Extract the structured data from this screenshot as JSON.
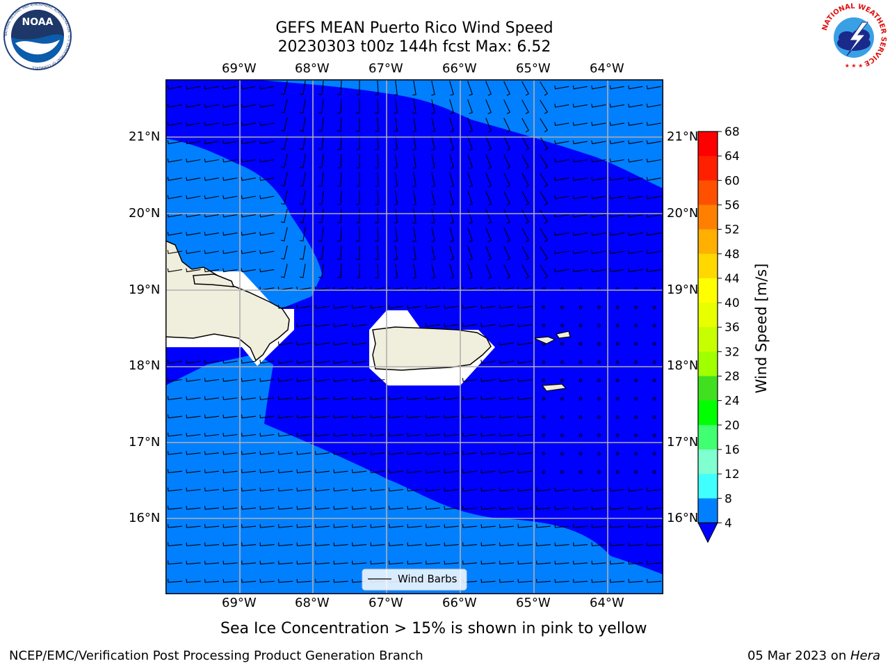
{
  "header": {
    "title_line1": "GEFS MEAN Puerto Rico Wind Speed",
    "title_line2": "20230303 t00z 144h fcst   Max: 6.52"
  },
  "logos": {
    "left_text": "NOAA",
    "left_ring_text": "NATIONAL OCEANIC AND ATMOSPHERIC ADMINISTRATION · U.S. DEPARTMENT OF COMMERCE",
    "right_ring_text": "NATIONAL WEATHER SERVICE"
  },
  "map": {
    "lon_labels": [
      "69°W",
      "68°W",
      "67°W",
      "66°W",
      "65°W",
      "64°W"
    ],
    "lat_labels": [
      "21°N",
      "20°N",
      "19°N",
      "18°N",
      "17°N",
      "16°N"
    ],
    "legend_label": "Wind Barbs",
    "extent": {
      "lon_min": -70.0,
      "lon_max": -63.25,
      "lat_min": 15.0,
      "lat_max": 21.75
    },
    "colors": {
      "low": "#0000ff",
      "band_4_8": "#0080ff",
      "land": "#f0eedc"
    }
  },
  "colorbar": {
    "label": "Wind Speed [m/s]",
    "ticks": [
      "68",
      "64",
      "60",
      "56",
      "52",
      "48",
      "44",
      "40",
      "36",
      "32",
      "28",
      "24",
      "20",
      "16",
      "12",
      "8",
      "4"
    ],
    "colors": [
      "#ff0000",
      "#ff2000",
      "#ff5000",
      "#ff8000",
      "#ffb000",
      "#ffd800",
      "#ffff00",
      "#e8ff00",
      "#c8ff00",
      "#a0ff00",
      "#40e020",
      "#00ff00",
      "#40ff70",
      "#80ffd0",
      "#40ffff",
      "#00ffff",
      "#00c0ff",
      "#0080ff"
    ],
    "extend_color": "#0000ff"
  },
  "chart_data": {
    "type": "map",
    "field": "GEFS MEAN wind speed",
    "units": "m/s",
    "max": 6.52,
    "levels": [
      4,
      8,
      12,
      16,
      20,
      24,
      28,
      32,
      36,
      40,
      44,
      48,
      52,
      56,
      60,
      64,
      68
    ]
  },
  "note": "Sea Ice Concentration > 15% is shown in pink to yellow",
  "footer": {
    "left": "NCEP/EMC/Verification Post Processing Product Generation Branch",
    "right_date": "05 Mar 2023 on ",
    "right_host": "Hera"
  }
}
